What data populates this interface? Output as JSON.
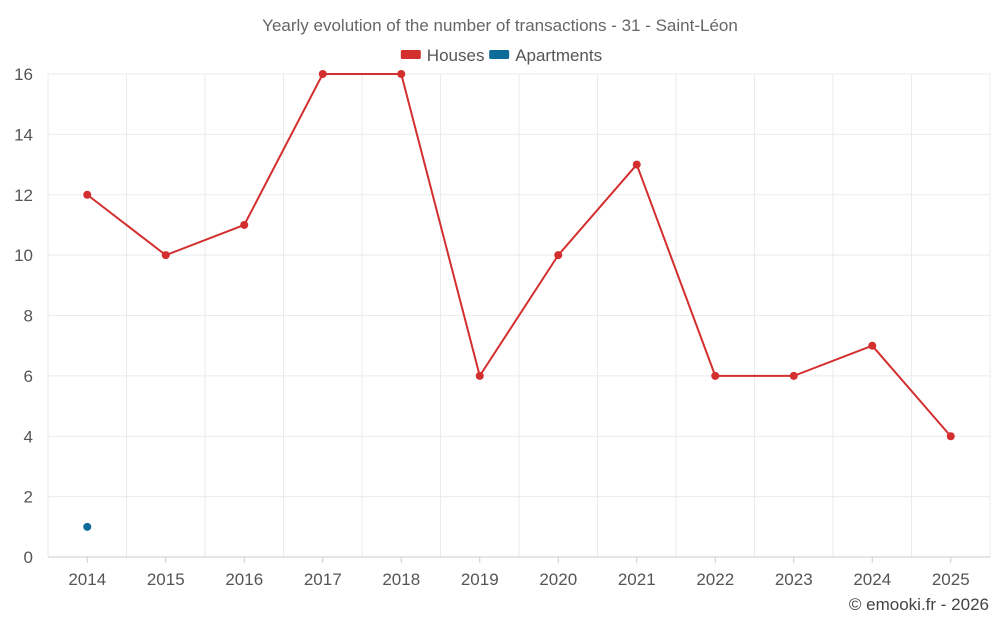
{
  "chart_data": {
    "type": "line",
    "title": "Yearly evolution of the number of transactions - 31 - Saint-Léon",
    "categories": [
      "2014",
      "2015",
      "2016",
      "2017",
      "2018",
      "2019",
      "2020",
      "2021",
      "2022",
      "2023",
      "2024",
      "2025"
    ],
    "series": [
      {
        "name": "Houses",
        "color": "#d32f2f",
        "values": [
          12,
          10,
          11,
          16,
          16,
          6,
          10,
          13,
          6,
          6,
          7,
          4
        ]
      },
      {
        "name": "Apartments",
        "color": "#0d6b9a",
        "values": [
          1,
          null,
          null,
          null,
          null,
          null,
          null,
          null,
          null,
          null,
          null,
          null
        ]
      }
    ],
    "xlabel": "",
    "ylabel": "",
    "ylim": [
      0,
      16
    ],
    "yticks": [
      "0",
      "2",
      "4",
      "6",
      "8",
      "10",
      "12",
      "14",
      "16"
    ],
    "grid": true,
    "legend_position": "top-center"
  },
  "credit": "© emooki.fr - 2026"
}
